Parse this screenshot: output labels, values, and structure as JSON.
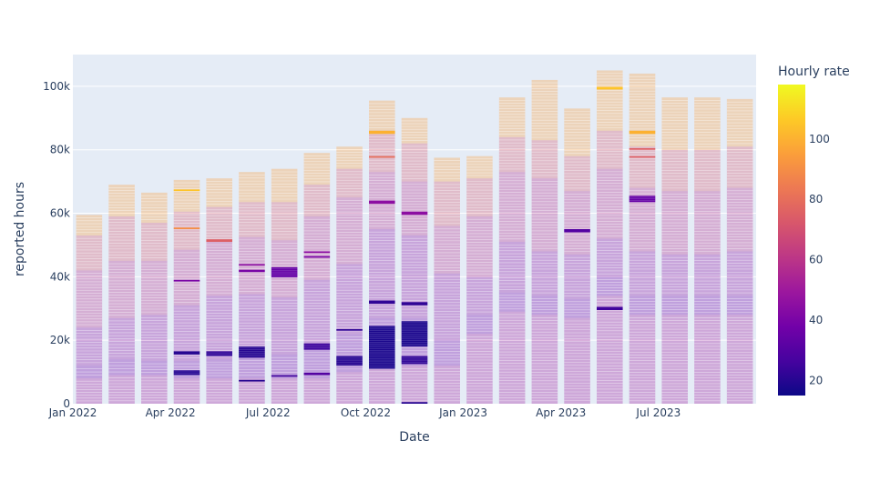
{
  "chart_data": {
    "type": "bar",
    "barmode": "stack",
    "title": "",
    "xlabel": "Date",
    "ylabel": "reported hours",
    "ylim": [
      0,
      110000
    ],
    "yticks": [
      0,
      20000,
      40000,
      60000,
      80000,
      100000
    ],
    "ytick_labels": [
      "0",
      "20k",
      "40k",
      "60k",
      "80k",
      "100k"
    ],
    "xticks": [
      "2022-01",
      "2022-04",
      "2022-07",
      "2022-10",
      "2023-01",
      "2023-04",
      "2023-07"
    ],
    "xtick_labels": [
      "Jan 2022",
      "Apr 2022",
      "Jul 2022",
      "Oct 2022",
      "Jan 2023",
      "Apr 2023",
      "Jul 2023"
    ],
    "months": [
      "2022-01",
      "2022-02",
      "2022-03",
      "2022-04",
      "2022-05",
      "2022-06",
      "2022-07",
      "2022-08",
      "2022-09",
      "2022-10",
      "2022-11",
      "2022-12",
      "2023-01",
      "2023-02",
      "2023-03",
      "2023-04",
      "2023-05",
      "2023-06",
      "2023-07",
      "2023-08",
      "2023-09"
    ],
    "totals": [
      59500,
      69000,
      66500,
      70500,
      71000,
      73000,
      74000,
      79000,
      81000,
      95500,
      90000,
      77500,
      78000,
      96500,
      102000,
      93000,
      105000,
      104000,
      96500,
      96500,
      96000
    ],
    "segments": [
      {
        "rate": 50,
        "hours_by_month": [
          8000,
          9000,
          9000,
          8000,
          8000,
          8000,
          8000,
          8000,
          10000,
          11000,
          12000,
          12000,
          22000,
          29000,
          28000,
          27000,
          34000,
          28000,
          28000,
          28000,
          28000
        ]
      },
      {
        "rate": 38,
        "hours_by_month": [
          4000,
          5000,
          4500,
          5500,
          6000,
          7500,
          7500,
          10000,
          12000,
          16000,
          15000,
          8000,
          6000,
          6000,
          6000,
          6000,
          6000,
          6000,
          6000,
          6000,
          6000
        ]
      },
      {
        "rate": 45,
        "hours_by_month": [
          12000,
          13000,
          14500,
          17500,
          20000,
          19000,
          18000,
          21000,
          22000,
          28000,
          26000,
          21000,
          12000,
          16000,
          14000,
          14000,
          12000,
          14000,
          13000,
          13000,
          14000
        ]
      },
      {
        "rate": 58,
        "hours_by_month": [
          18000,
          18000,
          17000,
          17500,
          17000,
          18000,
          18000,
          20000,
          21000,
          18000,
          17000,
          15000,
          19000,
          22000,
          23000,
          20000,
          22000,
          20000,
          20000,
          20000,
          20000
        ]
      },
      {
        "rate": 72,
        "hours_by_month": [
          11000,
          14000,
          12000,
          12000,
          11000,
          11000,
          12000,
          10000,
          9000,
          13000,
          12000,
          14000,
          12000,
          11000,
          12000,
          11000,
          12000,
          13000,
          13000,
          13000,
          13000
        ]
      },
      {
        "rate": 95,
        "hours_by_month": [
          6500,
          10000,
          9500,
          10000,
          9000,
          9500,
          10500,
          10000,
          7000,
          9500,
          8000,
          7500,
          7000,
          12500,
          19000,
          15000,
          19000,
          23000,
          16500,
          16500,
          15000
        ]
      }
    ],
    "highlights": [
      {
        "month": "2022-04",
        "rate": 20,
        "y": [
          9000,
          10500
        ]
      },
      {
        "month": "2022-04",
        "rate": 20,
        "y": [
          15500,
          16500
        ]
      },
      {
        "month": "2022-04",
        "rate": 40,
        "y": [
          38500,
          39000
        ]
      },
      {
        "month": "2022-04",
        "rate": 90,
        "y": [
          55000,
          55500
        ]
      },
      {
        "month": "2022-04",
        "rate": 105,
        "y": [
          67000,
          67500
        ]
      },
      {
        "month": "2022-05",
        "rate": 22,
        "y": [
          15000,
          16500
        ]
      },
      {
        "month": "2022-05",
        "rate": 75,
        "y": [
          51000,
          51800
        ]
      },
      {
        "month": "2022-06",
        "rate": 20,
        "y": [
          14500,
          18000
        ]
      },
      {
        "month": "2022-06",
        "rate": 20,
        "y": [
          7000,
          7500
        ]
      },
      {
        "month": "2022-06",
        "rate": 40,
        "y": [
          41500,
          42200
        ]
      },
      {
        "month": "2022-06",
        "rate": 45,
        "y": [
          43500,
          44000
        ]
      },
      {
        "month": "2022-07",
        "rate": 25,
        "y": [
          8500,
          9000
        ]
      },
      {
        "month": "2022-07",
        "rate": 35,
        "y": [
          39800,
          43000
        ]
      },
      {
        "month": "2022-08",
        "rate": 25,
        "y": [
          17000,
          19000
        ]
      },
      {
        "month": "2022-08",
        "rate": 30,
        "y": [
          9000,
          9800
        ]
      },
      {
        "month": "2022-08",
        "rate": 40,
        "y": [
          46000,
          46500
        ]
      },
      {
        "month": "2022-08",
        "rate": 45,
        "y": [
          47500,
          48000
        ]
      },
      {
        "month": "2022-09",
        "rate": 20,
        "y": [
          12000,
          15000
        ]
      },
      {
        "month": "2022-09",
        "rate": 22,
        "y": [
          23000,
          23500
        ]
      },
      {
        "month": "2022-10",
        "rate": 18,
        "y": [
          11000,
          24500
        ]
      },
      {
        "month": "2022-10",
        "rate": 22,
        "y": [
          31500,
          32500
        ]
      },
      {
        "month": "2022-10",
        "rate": 45,
        "y": [
          63000,
          64000
        ]
      },
      {
        "month": "2022-10",
        "rate": 100,
        "y": [
          85000,
          86000
        ]
      },
      {
        "month": "2022-10",
        "rate": 80,
        "y": [
          77500,
          78000
        ]
      },
      {
        "month": "2022-11",
        "rate": 18,
        "y": [
          18000,
          26000
        ]
      },
      {
        "month": "2022-11",
        "rate": 22,
        "y": [
          12500,
          15000
        ]
      },
      {
        "month": "2022-11",
        "rate": 22,
        "y": [
          31000,
          32000
        ]
      },
      {
        "month": "2022-11",
        "rate": 45,
        "y": [
          59500,
          60500
        ]
      },
      {
        "month": "2022-11",
        "rate": 20,
        "y": [
          0,
          500
        ]
      },
      {
        "month": "2023-04",
        "rate": 30,
        "y": [
          54000,
          55000
        ]
      },
      {
        "month": "2023-05",
        "rate": 25,
        "y": [
          29500,
          30500
        ]
      },
      {
        "month": "2023-05",
        "rate": 105,
        "y": [
          99000,
          99800
        ]
      },
      {
        "month": "2023-06",
        "rate": 35,
        "y": [
          63500,
          65500
        ]
      },
      {
        "month": "2023-06",
        "rate": 100,
        "y": [
          85000,
          86000
        ]
      },
      {
        "month": "2023-06",
        "rate": 75,
        "y": [
          77500,
          78000
        ]
      },
      {
        "month": "2023-06",
        "rate": 75,
        "y": [
          80000,
          80500
        ]
      }
    ],
    "colorbar": {
      "title": "Hourly rate",
      "range": [
        15,
        118
      ],
      "ticks": [
        20,
        40,
        60,
        80,
        100
      ],
      "colorscale": [
        "#0d0887",
        "#46039f",
        "#7201a8",
        "#9c179e",
        "#bd3786",
        "#d8576b",
        "#ed7953",
        "#fb9f3a",
        "#fdca26",
        "#f0f921"
      ]
    },
    "plot_bg": "#e5ecf6",
    "grid": true
  }
}
